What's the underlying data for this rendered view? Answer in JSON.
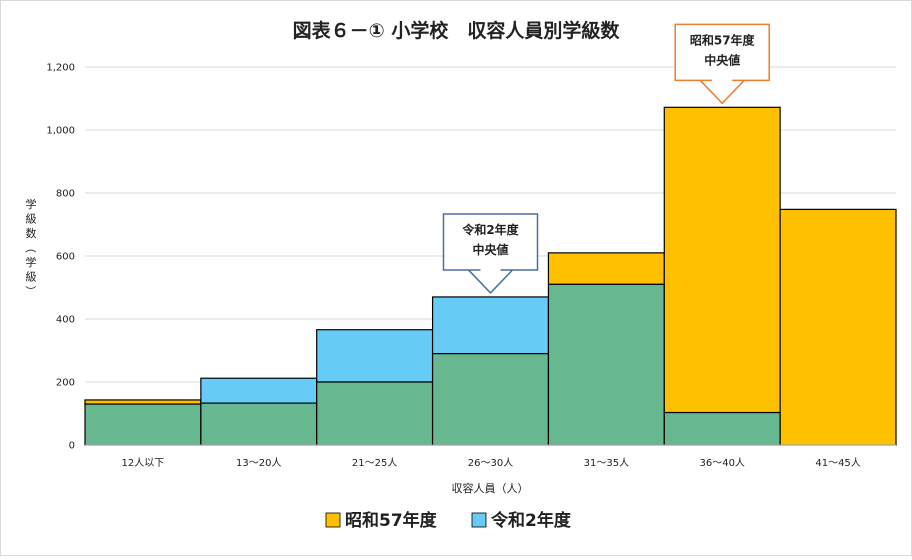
{
  "chart_data": {
    "type": "bar",
    "title": "図表６－① 小学校　収容人員別学級数",
    "xlabel": "収容人員（人）",
    "ylabel": "学級数（学級）",
    "ylim": [
      0,
      1200
    ],
    "yticks": [
      0,
      200,
      400,
      600,
      800,
      1000,
      1200
    ],
    "ytick_labels": [
      "0",
      "200",
      "400",
      "600",
      "800",
      "1,000",
      "1,200"
    ],
    "grid": true,
    "legend_position": "bottom",
    "categories": [
      "12人以下",
      "13〜20人",
      "21〜25人",
      "26〜30人",
      "31〜35人",
      "36〜40人",
      "41〜45人"
    ],
    "series": [
      {
        "name": "昭和57年度",
        "color": "#FFC000",
        "values": [
          143,
          133,
          200,
          290,
          610,
          1072,
          748
        ]
      },
      {
        "name": "令和2年度",
        "color": "#66CCF5",
        "values": [
          130,
          212,
          366,
          470,
          510,
          103,
          0
        ]
      }
    ],
    "overlap_color": "#67B890",
    "callouts": [
      {
        "category_index": 5,
        "lines": [
          "昭和57年度",
          "中央値"
        ],
        "color": "#ED7D31"
      },
      {
        "category_index": 3,
        "lines": [
          "令和2年度",
          "中央値"
        ],
        "color": "#4A6FA5"
      }
    ]
  }
}
